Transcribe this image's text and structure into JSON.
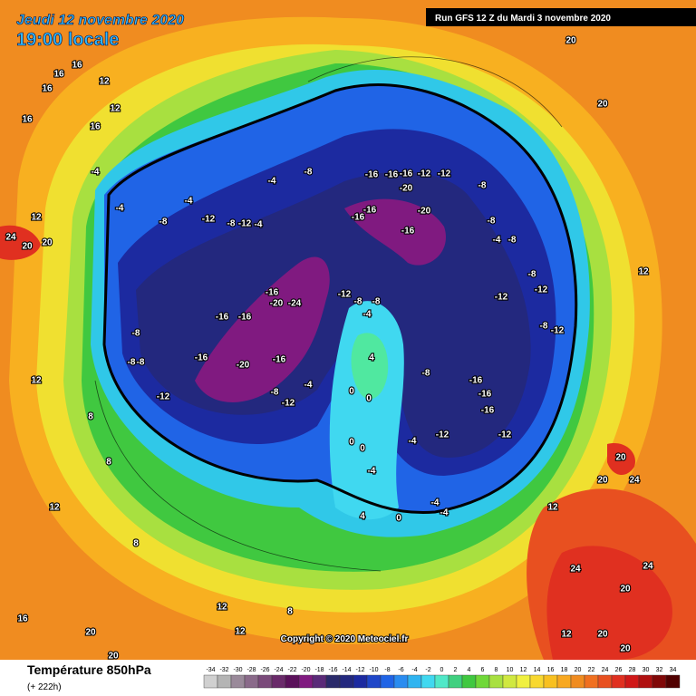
{
  "header": {
    "date": "Jeudi 12 novembre 2020",
    "local_time": "19:00 locale",
    "run": "Run GFS 12 Z du Mardi 3 novembre 2020"
  },
  "footer": {
    "title": "Température 850hPa",
    "lead": "(+ 222h)",
    "copyright": "Copyright © 2020 Meteociel.fr"
  },
  "legend": {
    "ticks": [
      -34,
      -32,
      -30,
      -28,
      -26,
      -24,
      -22,
      -20,
      -18,
      -16,
      -14,
      -12,
      -10,
      -8,
      -6,
      -4,
      -2,
      0,
      2,
      4,
      6,
      8,
      10,
      12,
      14,
      16,
      18,
      20,
      22,
      24,
      26,
      28,
      30,
      32,
      34
    ],
    "colors": [
      "#d0d0d0",
      "#b4b4b4",
      "#9a8a9a",
      "#8a6a8a",
      "#7a4a7a",
      "#6a2a6a",
      "#5a105a",
      "#801a80",
      "#5a2a78",
      "#2a2a6a",
      "#23287e",
      "#1c2aa0",
      "#1f46c8",
      "#2064e6",
      "#2a8cf0",
      "#30b4f0",
      "#40d8f0",
      "#50e8c8",
      "#40d080",
      "#40c840",
      "#70d838",
      "#a8e040",
      "#d0e840",
      "#f0f040",
      "#f8d830",
      "#f8c020",
      "#f8a820",
      "#f08c20",
      "#f07020",
      "#e85020",
      "#e03020",
      "#d01818",
      "#b01010",
      "#800808",
      "#500000"
    ],
    "labels": [
      24,
      20,
      20,
      16,
      16,
      16,
      12,
      16,
      12,
      16,
      12,
      -4,
      -4,
      -8,
      -4,
      -12,
      -8,
      -12,
      -4,
      -4,
      -8,
      -16,
      -16,
      -16,
      -12,
      -12,
      -8,
      -20,
      -20,
      -16,
      -16,
      -16,
      -8,
      -4,
      -8,
      -8,
      -12,
      -12,
      -8,
      -12,
      -12,
      -8,
      -8,
      -4,
      -16,
      -20,
      -24,
      -16,
      -16,
      -16,
      -20,
      -16,
      -8,
      -12,
      -4,
      -12,
      -8,
      -8,
      -8,
      4,
      0,
      0,
      0,
      0,
      -4,
      -4,
      -8,
      -16,
      -16,
      -16,
      -12,
      -12,
      -4,
      -4,
      0,
      4,
      8,
      12,
      12,
      20,
      20,
      16,
      20,
      20,
      20,
      24,
      24,
      20,
      20,
      20,
      24,
      20,
      12,
      12,
      8,
      8,
      8,
      12,
      12,
      12
    ]
  }
}
